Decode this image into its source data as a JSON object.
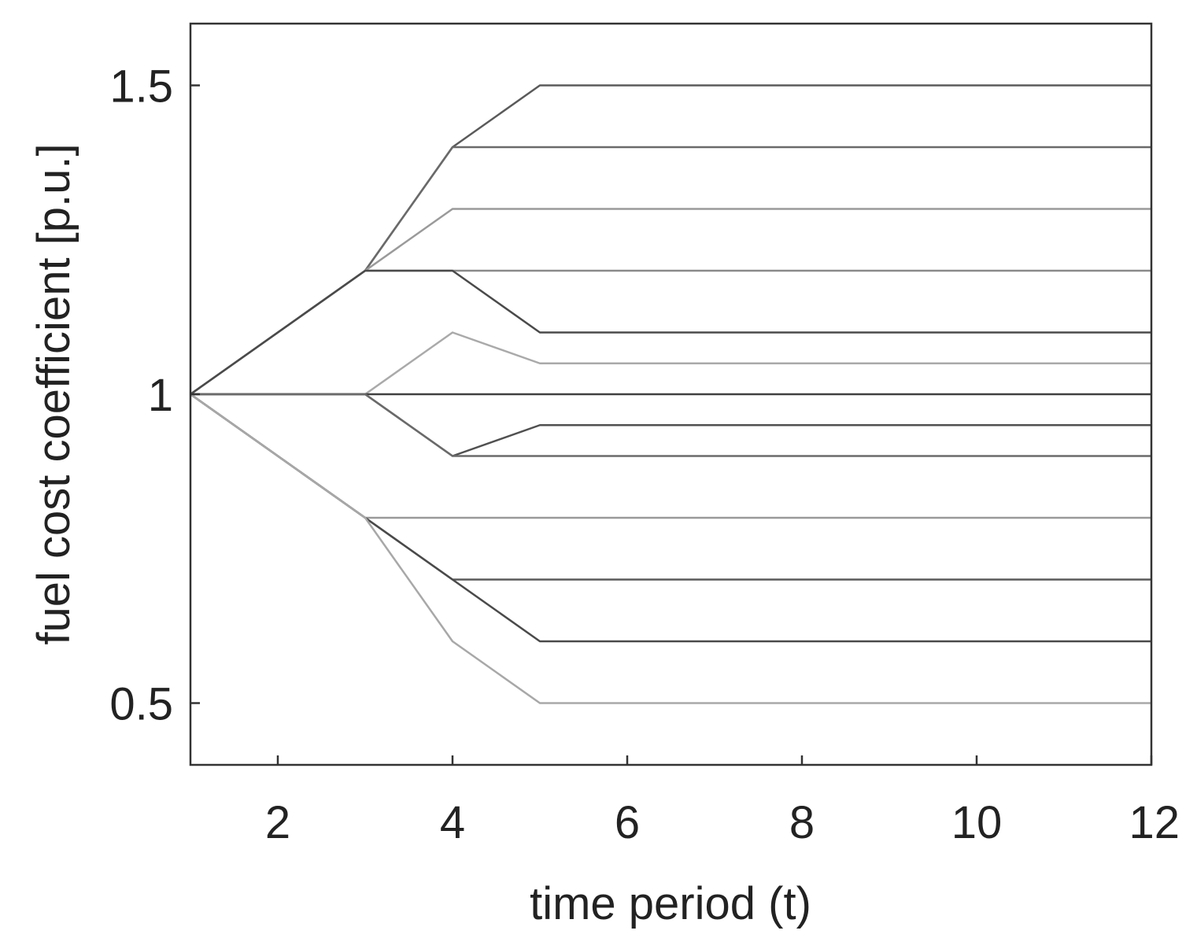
{
  "chart_data": {
    "type": "line",
    "title": "",
    "xlabel": "time period (t)",
    "ylabel": "fuel cost coefficient [p.u.]",
    "xlim": [
      1,
      12
    ],
    "ylim": [
      0.4,
      1.6
    ],
    "grid": false,
    "legend": "none",
    "x_ticks": [
      2,
      4,
      6,
      8,
      10,
      12
    ],
    "x_tick_labels": [
      "2",
      "4",
      "6",
      "8",
      "10",
      "12"
    ],
    "y_ticks": [
      0.5,
      1,
      1.5
    ],
    "y_tick_labels": [
      "0.5",
      "1",
      "1.5"
    ],
    "x": [
      1,
      2,
      3,
      4,
      5,
      6,
      7,
      8,
      9,
      10,
      11,
      12
    ],
    "series": [
      {
        "color": "#5a5a5a",
        "values": [
          1,
          1.1,
          1.2,
          1.4,
          1.5,
          1.5,
          1.5,
          1.5,
          1.5,
          1.5,
          1.5,
          1.5
        ]
      },
      {
        "color": "#6a6a6a",
        "values": [
          1,
          1.1,
          1.2,
          1.4,
          1.4,
          1.4,
          1.4,
          1.4,
          1.4,
          1.4,
          1.4,
          1.4
        ]
      },
      {
        "color": "#9a9a9a",
        "values": [
          1,
          1.1,
          1.2,
          1.3,
          1.3,
          1.3,
          1.3,
          1.3,
          1.3,
          1.3,
          1.3,
          1.3
        ]
      },
      {
        "color": "#8a8a8a",
        "values": [
          1,
          1.1,
          1.2,
          1.2,
          1.2,
          1.2,
          1.2,
          1.2,
          1.2,
          1.2,
          1.2,
          1.2
        ]
      },
      {
        "color": "#4a4a4a",
        "values": [
          1,
          1.1,
          1.2,
          1.2,
          1.1,
          1.1,
          1.1,
          1.1,
          1.1,
          1.1,
          1.1,
          1.1
        ]
      },
      {
        "color": "#aaaaaa",
        "values": [
          1,
          1,
          1,
          1.1,
          1.05,
          1.05,
          1.05,
          1.05,
          1.05,
          1.05,
          1.05,
          1.05
        ]
      },
      {
        "color": "#404040",
        "values": [
          1,
          1,
          1,
          1,
          1,
          1,
          1,
          1,
          1,
          1,
          1,
          1
        ]
      },
      {
        "color": "#505050",
        "values": [
          1,
          1,
          1,
          0.9,
          0.95,
          0.95,
          0.95,
          0.95,
          0.95,
          0.95,
          0.95,
          0.95
        ]
      },
      {
        "color": "#6a6a6a",
        "values": [
          1,
          1,
          1,
          0.9,
          0.9,
          0.9,
          0.9,
          0.9,
          0.9,
          0.9,
          0.9,
          0.9
        ]
      },
      {
        "color": "#999999",
        "values": [
          1,
          0.9,
          0.8,
          0.8,
          0.8,
          0.8,
          0.8,
          0.8,
          0.8,
          0.8,
          0.8,
          0.8
        ]
      },
      {
        "color": "#5a5a5a",
        "values": [
          1,
          0.9,
          0.8,
          0.7,
          0.7,
          0.7,
          0.7,
          0.7,
          0.7,
          0.7,
          0.7,
          0.7
        ]
      },
      {
        "color": "#4a4a4a",
        "values": [
          1,
          0.9,
          0.8,
          0.7,
          0.6,
          0.6,
          0.6,
          0.6,
          0.6,
          0.6,
          0.6,
          0.6
        ]
      },
      {
        "color": "#a8a8a8",
        "values": [
          1,
          0.9,
          0.8,
          0.6,
          0.5,
          0.5,
          0.5,
          0.5,
          0.5,
          0.5,
          0.5,
          0.5
        ]
      }
    ]
  }
}
